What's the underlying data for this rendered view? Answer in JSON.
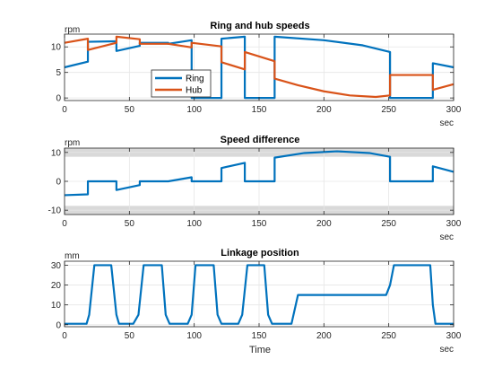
{
  "colors": {
    "ring": "#0072bd",
    "hub": "#d95319",
    "band": "#d9d9d9",
    "grid": "#e6e6e6",
    "axis": "#262626"
  },
  "chart_data": [
    {
      "type": "line",
      "title": "Ring and hub speeds",
      "ylabel": "rpm",
      "xunit": "sec",
      "xlabel": "",
      "xlim": [
        0,
        300
      ],
      "ylim": [
        -0.5,
        12.5
      ],
      "xticks": [
        0,
        50,
        100,
        150,
        200,
        250,
        300
      ],
      "yticks": [
        0,
        5,
        10
      ],
      "grid": true,
      "legend": {
        "placement": "bottom-left",
        "entries": [
          "Ring",
          "Hub"
        ]
      },
      "series": [
        {
          "name": "Ring",
          "color": "#0072bd",
          "points": [
            [
              0,
              6.0
            ],
            [
              18,
              7.1
            ],
            [
              18,
              11.0
            ],
            [
              40,
              11.1
            ],
            [
              40,
              9.2
            ],
            [
              58,
              10.2
            ],
            [
              58,
              10.8
            ],
            [
              80,
              10.8
            ],
            [
              80,
              10.6
            ],
            [
              98,
              11.3
            ],
            [
              98,
              0.0
            ],
            [
              121,
              0.0
            ],
            [
              121,
              11.6
            ],
            [
              139,
              12.0
            ],
            [
              139,
              0.0
            ],
            [
              162,
              0.0
            ],
            [
              162,
              12.0
            ],
            [
              200,
              11.3
            ],
            [
              230,
              10.3
            ],
            [
              251,
              9.0
            ],
            [
              251,
              0.0
            ],
            [
              284,
              0.0
            ],
            [
              284,
              6.8
            ],
            [
              300,
              6.0
            ]
          ]
        },
        {
          "name": "Hub",
          "color": "#d95319",
          "points": [
            [
              0,
              10.8
            ],
            [
              18,
              11.6
            ],
            [
              18,
              9.4
            ],
            [
              40,
              10.8
            ],
            [
              40,
              12.0
            ],
            [
              58,
              11.5
            ],
            [
              58,
              10.6
            ],
            [
              80,
              10.6
            ],
            [
              80,
              10.6
            ],
            [
              98,
              9.9
            ],
            [
              98,
              10.8
            ],
            [
              121,
              10.1
            ],
            [
              121,
              7.0
            ],
            [
              139,
              5.6
            ],
            [
              139,
              9.0
            ],
            [
              162,
              7.2
            ],
            [
              162,
              3.8
            ],
            [
              180,
              2.5
            ],
            [
              200,
              1.3
            ],
            [
              220,
              0.5
            ],
            [
              240,
              0.2
            ],
            [
              251,
              0.5
            ],
            [
              251,
              4.5
            ],
            [
              284,
              4.5
            ],
            [
              284,
              1.6
            ],
            [
              300,
              2.7
            ]
          ]
        }
      ]
    },
    {
      "type": "line",
      "title": "Speed difference",
      "ylabel": "rpm",
      "xunit": "sec",
      "xlabel": "",
      "xlim": [
        0,
        300
      ],
      "ylim": [
        -11.5,
        11.5
      ],
      "xticks": [
        0,
        50,
        100,
        150,
        200,
        250,
        300
      ],
      "yticks": [
        -10,
        0,
        10
      ],
      "grid": true,
      "bands": [
        [
          8.5,
          11.5
        ],
        [
          -11.5,
          -8.5
        ]
      ],
      "series": [
        {
          "name": "",
          "color": "#0072bd",
          "points": [
            [
              0,
              -4.8
            ],
            [
              18,
              -4.5
            ],
            [
              18,
              0.0
            ],
            [
              40,
              0.0
            ],
            [
              40,
              -3.0
            ],
            [
              58,
              -1.3
            ],
            [
              58,
              0.0
            ],
            [
              80,
              0.0
            ],
            [
              80,
              0.0
            ],
            [
              98,
              1.4
            ],
            [
              98,
              0.0
            ],
            [
              121,
              0.0
            ],
            [
              121,
              4.6
            ],
            [
              139,
              6.4
            ],
            [
              139,
              0.0
            ],
            [
              162,
              0.0
            ],
            [
              162,
              8.2
            ],
            [
              185,
              9.8
            ],
            [
              210,
              10.4
            ],
            [
              235,
              9.8
            ],
            [
              251,
              8.5
            ],
            [
              251,
              0.0
            ],
            [
              284,
              0.0
            ],
            [
              284,
              5.2
            ],
            [
              300,
              3.3
            ]
          ]
        }
      ]
    },
    {
      "type": "line",
      "title": "Linkage position",
      "ylabel": "mm",
      "xunit": "sec",
      "xlabel": "Time",
      "xlim": [
        0,
        300
      ],
      "ylim": [
        -1,
        32
      ],
      "xticks": [
        0,
        50,
        100,
        150,
        200,
        250,
        300
      ],
      "yticks": [
        0,
        10,
        20,
        30
      ],
      "grid": true,
      "series": [
        {
          "name": "",
          "color": "#0072bd",
          "points": [
            [
              0,
              0.5
            ],
            [
              17,
              0.5
            ],
            [
              19,
              5
            ],
            [
              23,
              30
            ],
            [
              36,
              30
            ],
            [
              40,
              5
            ],
            [
              42,
              0.5
            ],
            [
              53,
              0.5
            ],
            [
              57,
              5
            ],
            [
              61,
              30
            ],
            [
              75,
              30
            ],
            [
              78,
              5
            ],
            [
              81,
              0.5
            ],
            [
              95,
              0.5
            ],
            [
              98,
              5
            ],
            [
              101,
              30
            ],
            [
              115,
              30
            ],
            [
              118,
              5
            ],
            [
              121,
              0.5
            ],
            [
              134,
              0.5
            ],
            [
              137,
              5
            ],
            [
              141,
              30
            ],
            [
              154,
              30
            ],
            [
              157,
              5
            ],
            [
              160,
              0.5
            ],
            [
              175,
              0.5
            ],
            [
              180,
              15
            ],
            [
              248,
              15
            ],
            [
              251,
              20
            ],
            [
              254,
              30
            ],
            [
              282,
              30
            ],
            [
              284,
              10
            ],
            [
              286,
              0.5
            ],
            [
              300,
              0.5
            ]
          ]
        }
      ]
    }
  ]
}
